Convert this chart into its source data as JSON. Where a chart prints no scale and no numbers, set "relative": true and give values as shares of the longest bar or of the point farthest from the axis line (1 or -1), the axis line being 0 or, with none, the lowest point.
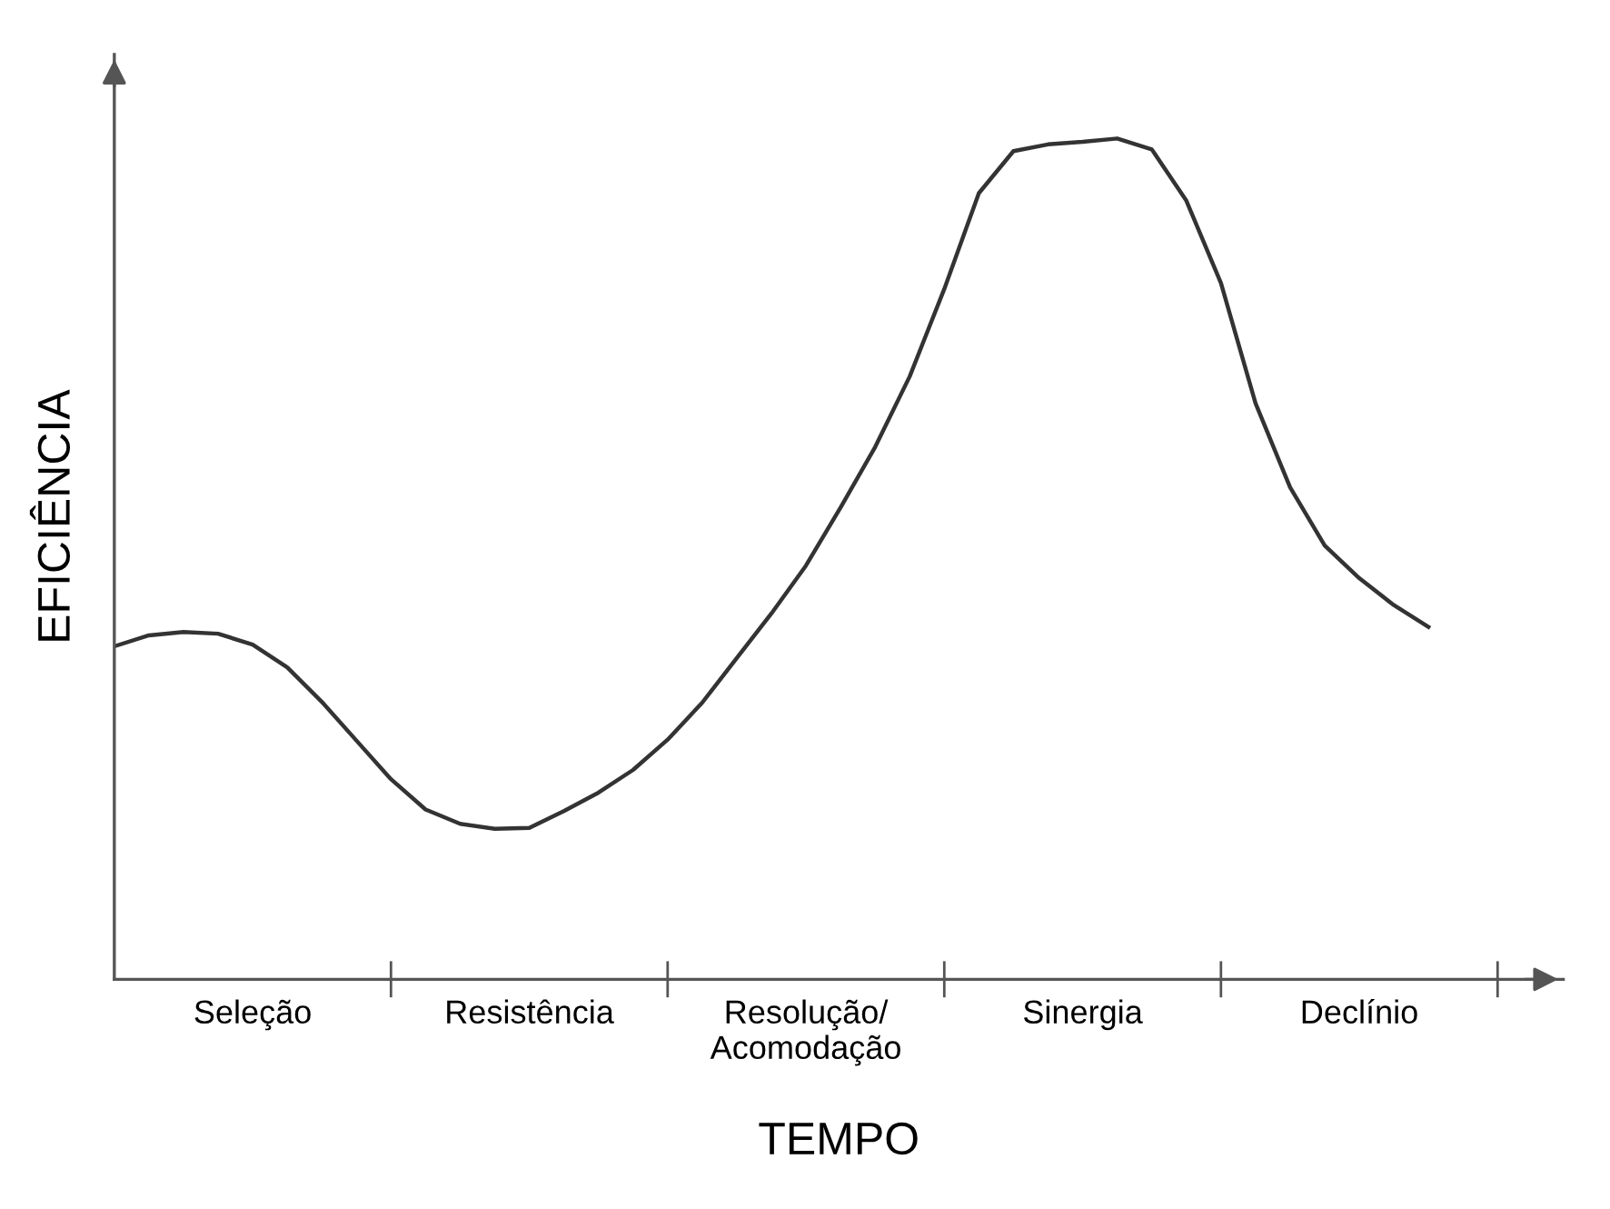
{
  "chart_data": {
    "type": "line",
    "relative": true,
    "xlabel": "TEMPO",
    "ylabel": "EFICIÊNCIA",
    "categories": [
      null,
      null,
      null,
      null,
      "Seleção",
      null,
      null,
      null,
      null,
      null,
      null,
      null,
      "Resistência",
      null,
      null,
      null,
      null,
      null,
      null,
      null,
      "Resolução/\nAcomodação",
      null,
      null,
      null,
      null,
      null,
      null,
      null,
      "Sinergia",
      null,
      null,
      null,
      null,
      null,
      null,
      null,
      "Declínio",
      null,
      null,
      null,
      null,
      null
    ],
    "tick_labels": "x",
    "grid": false,
    "legend": false,
    "marker": "none",
    "line_style": "solid",
    "series": [
      {
        "color": "#333333",
        "values": [
          0.396,
          0.409,
          0.413,
          0.411,
          0.398,
          0.371,
          0.33,
          0.284,
          0.238,
          0.202,
          0.185,
          0.179,
          0.18,
          0.2,
          0.222,
          0.249,
          0.285,
          0.329,
          0.382,
          0.435,
          0.492,
          0.561,
          0.633,
          0.717,
          0.821,
          0.935,
          0.985,
          0.993,
          0.996,
          1,
          0.987,
          0.926,
          0.828,
          0.685,
          0.585,
          0.516,
          0.477,
          0.445,
          0.419,
          null,
          null,
          null
        ]
      }
    ]
  }
}
